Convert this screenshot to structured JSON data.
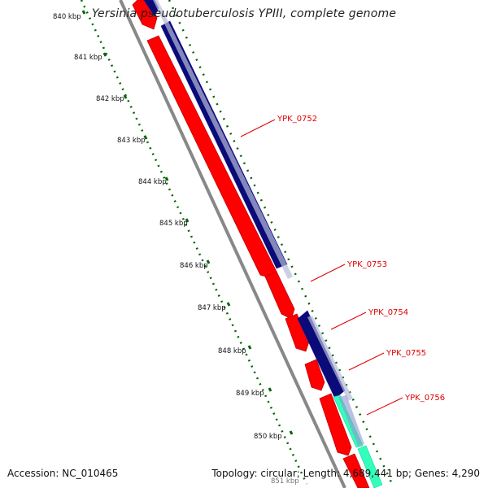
{
  "title": "Yersinia pseudotuberculosis YPIII, complete genome",
  "footer": {
    "accession": "Accession: NC_010465",
    "summary": "Topology: circular; Length: 4,689,441 bp; Genes: 4,290"
  },
  "ruler": {
    "ticks": [
      {
        "label": "840 kbp"
      },
      {
        "label": "841 kbp"
      },
      {
        "label": "842 kbp"
      },
      {
        "label": "843 kbp"
      },
      {
        "label": "844 kbp"
      },
      {
        "label": "845 kbp"
      },
      {
        "label": "846 kbp"
      },
      {
        "label": "847 kbp"
      },
      {
        "label": "848 kbp"
      },
      {
        "label": "849 kbp"
      },
      {
        "label": "850 kbp"
      },
      {
        "label": "851 kbp"
      }
    ]
  },
  "genes": [
    {
      "label": "YPK_0752"
    },
    {
      "label": "YPK_0753"
    },
    {
      "label": "YPK_0754"
    },
    {
      "label": "YPK_0755"
    },
    {
      "label": "YPK_0756"
    }
  ],
  "colors": {
    "cds_forward": "#ff0000",
    "cds_reverse": "#0a0a78",
    "cds_feature": "#33ffbb",
    "backbone": "#888888",
    "ruler_dots": "#006600",
    "label_line": "#e00000"
  }
}
